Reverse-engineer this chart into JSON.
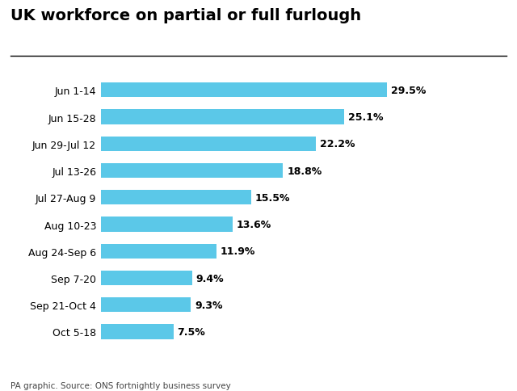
{
  "title": "UK workforce on partial or full furlough",
  "categories": [
    "Jun 1-14",
    "Jun 15-28",
    "Jun 29-Jul 12",
    "Jul 13-26",
    "Jul 27-Aug 9",
    "Aug 10-23",
    "Aug 24-Sep 6",
    "Sep 7-20",
    "Sep 21-Oct 4",
    "Oct 5-18"
  ],
  "values": [
    29.5,
    25.1,
    22.2,
    18.8,
    15.5,
    13.6,
    11.9,
    9.4,
    9.3,
    7.5
  ],
  "labels": [
    "29.5%",
    "25.1%",
    "22.2%",
    "18.8%",
    "15.5%",
    "13.6%",
    "11.9%",
    "9.4%",
    "9.3%",
    "7.5%"
  ],
  "bar_color": "#5bc8e8",
  "background_color": "#ffffff",
  "title_fontsize": 14,
  "label_fontsize": 9,
  "tick_fontsize": 9,
  "caption": "PA graphic. Source: ONS fortnightly business survey",
  "caption_fontsize": 7.5,
  "xlim": [
    0,
    36
  ]
}
